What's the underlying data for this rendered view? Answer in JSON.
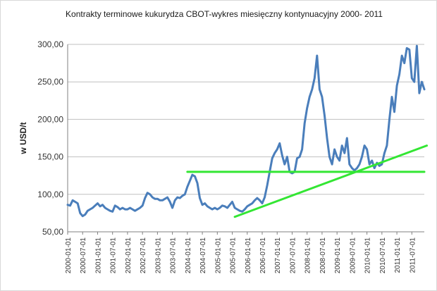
{
  "chart_data": {
    "type": "line",
    "title": "Kontrakty terminowe  kukurydza CBOT-wykres miesięczny kontynuacyjny  2000- 2011",
    "xlabel": "",
    "ylabel": "w USD/t",
    "ylim": [
      50,
      300
    ],
    "yticks": [
      50,
      100,
      150,
      200,
      250,
      300
    ],
    "ytick_labels": [
      "50,00",
      "100,00",
      "150,00",
      "200,00",
      "250,00",
      "300,00"
    ],
    "x_start": "2000-01",
    "x_end": "2011-12",
    "x_tick_labels": [
      "2000-01-01",
      "2000-07-01",
      "2001-01-01",
      "2001-07-01",
      "2002-01-01",
      "2002-07-01",
      "2003-01-01",
      "2003-07-01",
      "2004-01-01",
      "2004-07-01",
      "2005-01-01",
      "2005-07-01",
      "2006-01-01",
      "2006-07-01",
      "2007-01-01",
      "2007-07-01",
      "2008-01-01",
      "2008-07-01",
      "2009-01-01",
      "2009-07-01",
      "2010-01-01",
      "2010-07-01",
      "2011-01-01",
      "2011-07-01"
    ],
    "grid": "horizontal",
    "legend": "none",
    "series_color": "#4a7ebb",
    "trendline_color": "#33e633",
    "series": [
      {
        "values": [
          86,
          85,
          92,
          90,
          88,
          75,
          71,
          73,
          78,
          80,
          82,
          85,
          88,
          84,
          86,
          82,
          80,
          78,
          77,
          85,
          83,
          80,
          82,
          80,
          80,
          82,
          80,
          78,
          80,
          82,
          85,
          95,
          102,
          100,
          96,
          94,
          94,
          92,
          92,
          94,
          96,
          90,
          82,
          92,
          96,
          95,
          98,
          100,
          110,
          118,
          126,
          124,
          115,
          95,
          86,
          88,
          84,
          82,
          80,
          82,
          80,
          82,
          85,
          84,
          82,
          86,
          90,
          82,
          80,
          78,
          77,
          80,
          84,
          86,
          88,
          92,
          95,
          92,
          88,
          96,
          112,
          130,
          148,
          155,
          160,
          168,
          152,
          140,
          150,
          130,
          128,
          130,
          148,
          150,
          160,
          195,
          215,
          230,
          240,
          255,
          285,
          240,
          230,
          205,
          175,
          150,
          140,
          160,
          150,
          145,
          165,
          155,
          175,
          140,
          135,
          132,
          135,
          140,
          150,
          165,
          160,
          140,
          145,
          135,
          142,
          138,
          140,
          155,
          165,
          200,
          230,
          210,
          245,
          260,
          285,
          275,
          295,
          293,
          255,
          250,
          298,
          235,
          250,
          240
        ]
      }
    ],
    "trendlines": [
      {
        "x1": "2004-01",
        "y1": 130,
        "x2": "2011-12",
        "y2": 130
      },
      {
        "x1": "2005-08",
        "y1": 70,
        "x2": "2012-01",
        "y2": 165
      }
    ]
  }
}
